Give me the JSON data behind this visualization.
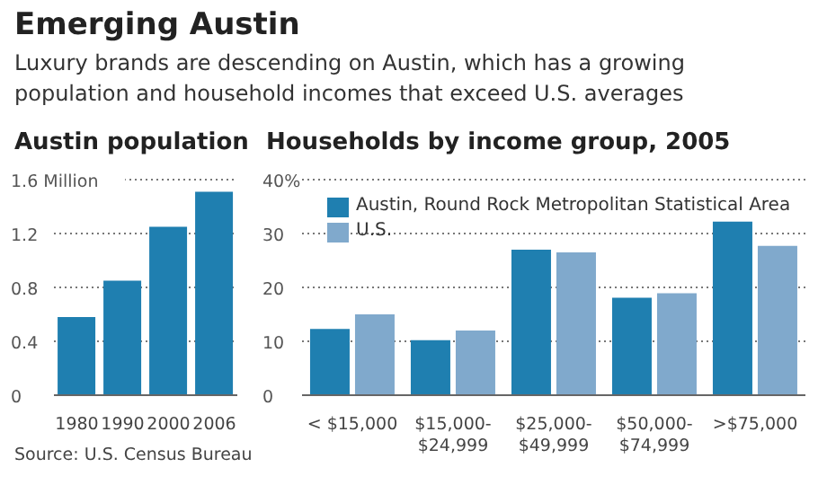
{
  "chart_data": [
    {
      "type": "other",
      "title": "Emerging Austin",
      "subtitle": "Luxury brands are descending on Austin, which has a growing population and household incomes that exceed U.S. averages",
      "annotations": [
        "Source: U.S. Census Bureau"
      ]
    },
    {
      "type": "bar",
      "title": "Austin population",
      "categories": [
        "1980",
        "1990",
        "2000",
        "2006"
      ],
      "values": [
        0.58,
        0.85,
        1.25,
        1.51
      ],
      "color": "#1f7fb0",
      "ylim": [
        0,
        1.6
      ],
      "yticks": [
        0,
        0.4,
        0.8,
        1.2,
        {
          "value": 1.6,
          "label": "1.6 Million"
        }
      ],
      "grid": "y"
    },
    {
      "type": "bar",
      "title": "Households by income group, 2005",
      "categories": [
        "< $15,000",
        "$15,000-$24,999",
        "$25,000-$49,999",
        "$50,000-$74,999",
        ">$75,000"
      ],
      "series": [
        {
          "name": "Austin, Round Rock Metropolitan Statistical Area",
          "color": "#1f7fb0",
          "values": [
            12.3,
            10.2,
            27,
            18.1,
            32.2
          ]
        },
        {
          "name": "U.S.",
          "color": "#80a9cc",
          "values": [
            15,
            12,
            26.5,
            18.9,
            27.7
          ]
        }
      ],
      "ylim": [
        0,
        40
      ],
      "yticks": [
        0,
        10,
        20,
        30,
        {
          "value": 40,
          "label": "40%"
        }
      ],
      "grid": "y",
      "legend": "top left"
    }
  ]
}
